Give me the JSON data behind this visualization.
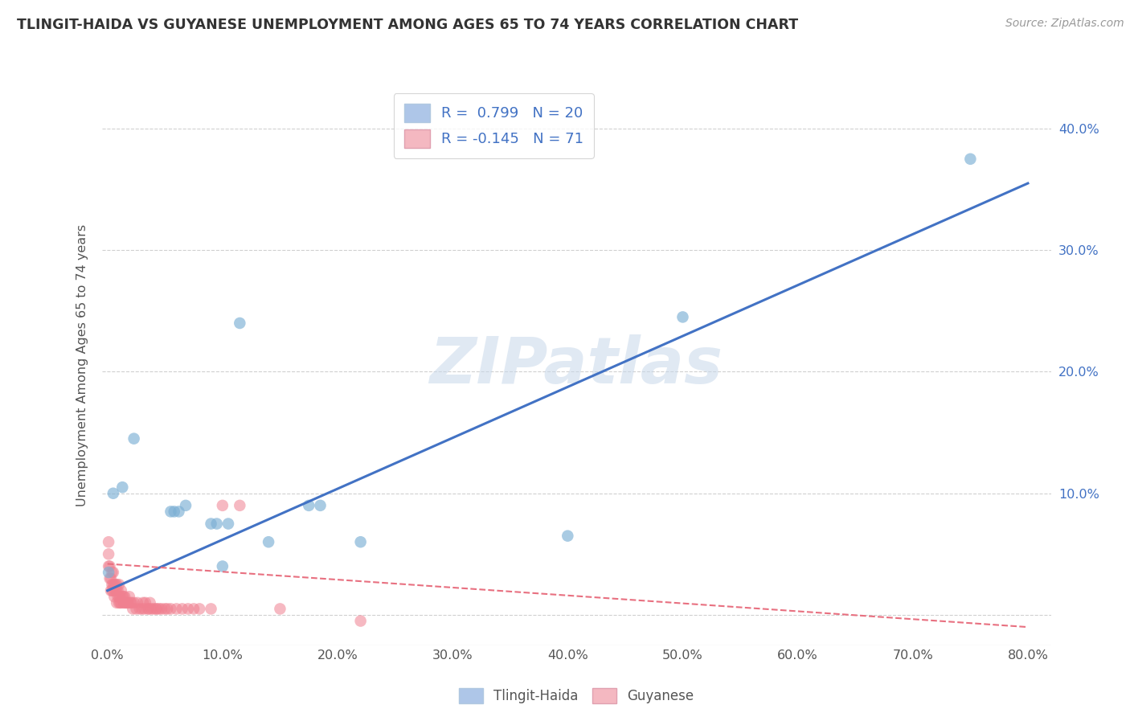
{
  "title": "TLINGIT-HAIDA VS GUYANESE UNEMPLOYMENT AMONG AGES 65 TO 74 YEARS CORRELATION CHART",
  "source": "Source: ZipAtlas.com",
  "ylabel": "Unemployment Among Ages 65 to 74 years",
  "xlim": [
    -0.005,
    0.82
  ],
  "ylim": [
    -0.025,
    0.435
  ],
  "xticks": [
    0.0,
    0.1,
    0.2,
    0.3,
    0.4,
    0.5,
    0.6,
    0.7,
    0.8
  ],
  "yticks": [
    0.0,
    0.1,
    0.2,
    0.3,
    0.4
  ],
  "xtick_labels": [
    "0.0%",
    "10.0%",
    "20.0%",
    "30.0%",
    "40.0%",
    "50.0%",
    "60.0%",
    "70.0%",
    "80.0%"
  ],
  "ytick_labels": [
    "",
    "10.0%",
    "20.0%",
    "30.0%",
    "40.0%"
  ],
  "legend_entries": [
    {
      "color": "#aec6e8",
      "edgecolor": "#7bafd4",
      "R": "0.799",
      "N": "20"
    },
    {
      "color": "#f4b8c1",
      "edgecolor": "#e87080",
      "R": "-0.145",
      "N": "71"
    }
  ],
  "tlingit_scatter_color": "#7bafd4",
  "guyanese_scatter_color": "#f08090",
  "tlingit_line_color": "#4272c4",
  "guyanese_line_color": "#e87080",
  "watermark": "ZIPatlas",
  "tlingit_x": [
    0.001,
    0.005,
    0.013,
    0.023,
    0.055,
    0.058,
    0.062,
    0.068,
    0.09,
    0.095,
    0.1,
    0.105,
    0.115,
    0.14,
    0.175,
    0.185,
    0.22,
    0.4,
    0.5,
    0.75
  ],
  "tlingit_y": [
    0.035,
    0.1,
    0.105,
    0.145,
    0.085,
    0.085,
    0.085,
    0.09,
    0.075,
    0.075,
    0.04,
    0.075,
    0.24,
    0.06,
    0.09,
    0.09,
    0.06,
    0.065,
    0.245,
    0.375
  ],
  "guyanese_x": [
    0.001,
    0.001,
    0.001,
    0.002,
    0.002,
    0.003,
    0.003,
    0.004,
    0.004,
    0.004,
    0.005,
    0.005,
    0.005,
    0.006,
    0.006,
    0.007,
    0.007,
    0.008,
    0.008,
    0.008,
    0.009,
    0.009,
    0.01,
    0.01,
    0.01,
    0.011,
    0.011,
    0.012,
    0.012,
    0.013,
    0.014,
    0.014,
    0.015,
    0.015,
    0.016,
    0.017,
    0.018,
    0.019,
    0.02,
    0.021,
    0.022,
    0.023,
    0.025,
    0.026,
    0.028,
    0.03,
    0.031,
    0.032,
    0.033,
    0.035,
    0.036,
    0.037,
    0.038,
    0.04,
    0.042,
    0.043,
    0.045,
    0.047,
    0.05,
    0.052,
    0.055,
    0.06,
    0.065,
    0.07,
    0.075,
    0.08,
    0.09,
    0.1,
    0.115,
    0.15,
    0.22
  ],
  "guyanese_y": [
    0.04,
    0.05,
    0.06,
    0.03,
    0.04,
    0.02,
    0.03,
    0.02,
    0.025,
    0.035,
    0.02,
    0.025,
    0.035,
    0.015,
    0.025,
    0.02,
    0.025,
    0.01,
    0.02,
    0.025,
    0.015,
    0.02,
    0.01,
    0.015,
    0.025,
    0.01,
    0.015,
    0.01,
    0.02,
    0.015,
    0.01,
    0.015,
    0.01,
    0.015,
    0.01,
    0.01,
    0.01,
    0.015,
    0.01,
    0.01,
    0.005,
    0.01,
    0.005,
    0.01,
    0.005,
    0.005,
    0.01,
    0.005,
    0.01,
    0.005,
    0.005,
    0.01,
    0.005,
    0.005,
    0.005,
    0.005,
    0.005,
    0.005,
    0.005,
    0.005,
    0.005,
    0.005,
    0.005,
    0.005,
    0.005,
    0.005,
    0.005,
    0.09,
    0.09,
    0.005,
    -0.005
  ],
  "tlingit_line_x": [
    0.0,
    0.8
  ],
  "tlingit_line_y_start": 0.02,
  "tlingit_line_y_end": 0.355,
  "guyanese_line_x": [
    0.0,
    0.8
  ],
  "guyanese_line_y_start": 0.042,
  "guyanese_line_y_end": -0.01,
  "background_color": "#ffffff",
  "grid_color": "#d0d0d0"
}
